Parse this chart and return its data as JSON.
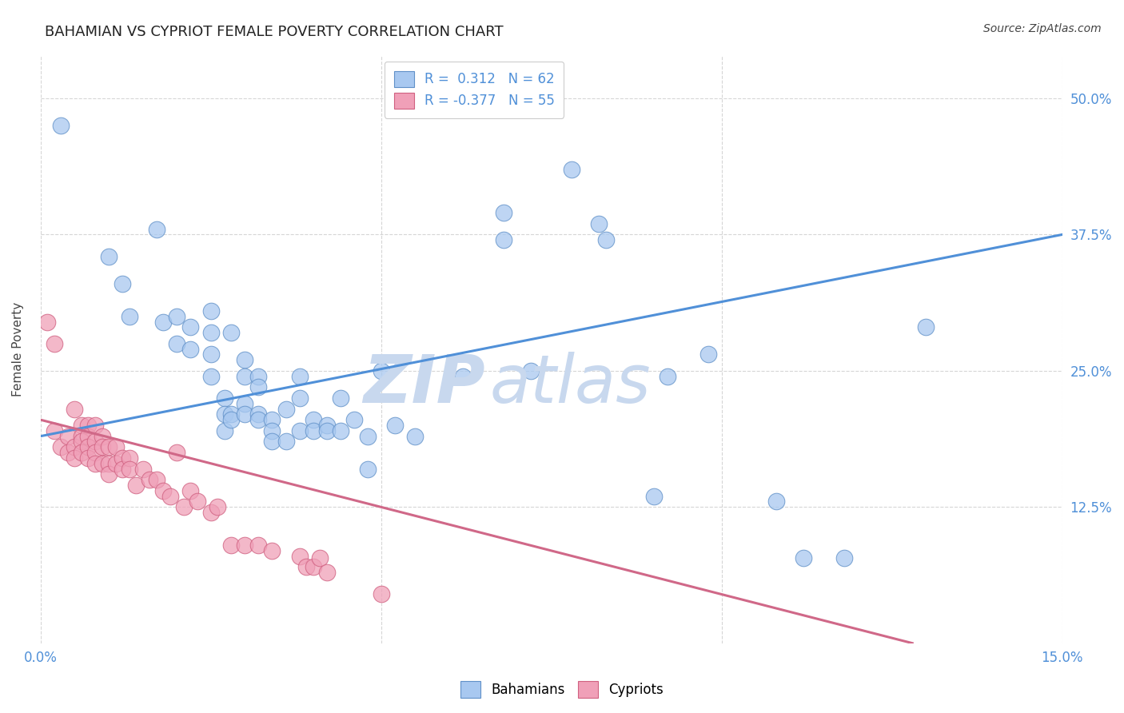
{
  "title": "BAHAMIAN VS CYPRIOT FEMALE POVERTY CORRELATION CHART",
  "source": "Source: ZipAtlas.com",
  "ylabel": "Female Poverty",
  "yticks": [
    "12.5%",
    "25.0%",
    "37.5%",
    "50.0%"
  ],
  "ytick_vals": [
    0.125,
    0.25,
    0.375,
    0.5
  ],
  "legend_blue_label": "R =  0.312   N = 62",
  "legend_pink_label": "R = -0.377   N = 55",
  "bahamians_label": "Bahamians",
  "cypriots_label": "Cypriots",
  "blue_color": "#A8C8F0",
  "pink_color": "#F0A0B8",
  "blue_edge_color": "#6090C8",
  "pink_edge_color": "#D06080",
  "blue_line_color": "#5090D8",
  "pink_line_color": "#D06888",
  "watermark_zip_color": "#C8D8EE",
  "watermark_atlas_color": "#C8D8EE",
  "background_color": "#FFFFFF",
  "xlim": [
    0.0,
    0.15
  ],
  "ylim": [
    0.0,
    0.54
  ],
  "blue_points": [
    [
      0.003,
      0.475
    ],
    [
      0.01,
      0.355
    ],
    [
      0.012,
      0.33
    ],
    [
      0.013,
      0.3
    ],
    [
      0.017,
      0.38
    ],
    [
      0.018,
      0.295
    ],
    [
      0.02,
      0.275
    ],
    [
      0.02,
      0.3
    ],
    [
      0.022,
      0.29
    ],
    [
      0.022,
      0.27
    ],
    [
      0.025,
      0.305
    ],
    [
      0.025,
      0.285
    ],
    [
      0.025,
      0.265
    ],
    [
      0.025,
      0.245
    ],
    [
      0.027,
      0.225
    ],
    [
      0.027,
      0.21
    ],
    [
      0.027,
      0.195
    ],
    [
      0.028,
      0.285
    ],
    [
      0.028,
      0.21
    ],
    [
      0.028,
      0.205
    ],
    [
      0.03,
      0.26
    ],
    [
      0.03,
      0.245
    ],
    [
      0.03,
      0.22
    ],
    [
      0.03,
      0.21
    ],
    [
      0.032,
      0.245
    ],
    [
      0.032,
      0.235
    ],
    [
      0.032,
      0.21
    ],
    [
      0.032,
      0.205
    ],
    [
      0.034,
      0.205
    ],
    [
      0.034,
      0.195
    ],
    [
      0.034,
      0.185
    ],
    [
      0.036,
      0.215
    ],
    [
      0.036,
      0.185
    ],
    [
      0.038,
      0.245
    ],
    [
      0.038,
      0.225
    ],
    [
      0.038,
      0.195
    ],
    [
      0.04,
      0.205
    ],
    [
      0.04,
      0.195
    ],
    [
      0.042,
      0.2
    ],
    [
      0.042,
      0.195
    ],
    [
      0.044,
      0.225
    ],
    [
      0.044,
      0.195
    ],
    [
      0.046,
      0.205
    ],
    [
      0.048,
      0.19
    ],
    [
      0.048,
      0.16
    ],
    [
      0.05,
      0.25
    ],
    [
      0.052,
      0.2
    ],
    [
      0.055,
      0.19
    ],
    [
      0.062,
      0.245
    ],
    [
      0.068,
      0.395
    ],
    [
      0.068,
      0.37
    ],
    [
      0.072,
      0.25
    ],
    [
      0.078,
      0.435
    ],
    [
      0.082,
      0.385
    ],
    [
      0.083,
      0.37
    ],
    [
      0.09,
      0.135
    ],
    [
      0.092,
      0.245
    ],
    [
      0.098,
      0.265
    ],
    [
      0.108,
      0.13
    ],
    [
      0.112,
      0.078
    ],
    [
      0.118,
      0.078
    ],
    [
      0.13,
      0.29
    ]
  ],
  "pink_points": [
    [
      0.001,
      0.295
    ],
    [
      0.002,
      0.275
    ],
    [
      0.002,
      0.195
    ],
    [
      0.003,
      0.18
    ],
    [
      0.004,
      0.19
    ],
    [
      0.004,
      0.175
    ],
    [
      0.005,
      0.215
    ],
    [
      0.005,
      0.18
    ],
    [
      0.005,
      0.17
    ],
    [
      0.006,
      0.2
    ],
    [
      0.006,
      0.19
    ],
    [
      0.006,
      0.185
    ],
    [
      0.006,
      0.175
    ],
    [
      0.007,
      0.2
    ],
    [
      0.007,
      0.19
    ],
    [
      0.007,
      0.18
    ],
    [
      0.007,
      0.17
    ],
    [
      0.008,
      0.2
    ],
    [
      0.008,
      0.185
    ],
    [
      0.008,
      0.175
    ],
    [
      0.008,
      0.165
    ],
    [
      0.009,
      0.19
    ],
    [
      0.009,
      0.18
    ],
    [
      0.009,
      0.165
    ],
    [
      0.01,
      0.18
    ],
    [
      0.01,
      0.165
    ],
    [
      0.01,
      0.155
    ],
    [
      0.011,
      0.18
    ],
    [
      0.011,
      0.165
    ],
    [
      0.012,
      0.17
    ],
    [
      0.012,
      0.16
    ],
    [
      0.013,
      0.17
    ],
    [
      0.013,
      0.16
    ],
    [
      0.014,
      0.145
    ],
    [
      0.015,
      0.16
    ],
    [
      0.016,
      0.15
    ],
    [
      0.017,
      0.15
    ],
    [
      0.018,
      0.14
    ],
    [
      0.019,
      0.135
    ],
    [
      0.02,
      0.175
    ],
    [
      0.021,
      0.125
    ],
    [
      0.022,
      0.14
    ],
    [
      0.023,
      0.13
    ],
    [
      0.025,
      0.12
    ],
    [
      0.026,
      0.125
    ],
    [
      0.028,
      0.09
    ],
    [
      0.03,
      0.09
    ],
    [
      0.032,
      0.09
    ],
    [
      0.034,
      0.085
    ],
    [
      0.038,
      0.08
    ],
    [
      0.039,
      0.07
    ],
    [
      0.04,
      0.07
    ],
    [
      0.041,
      0.078
    ],
    [
      0.042,
      0.065
    ],
    [
      0.05,
      0.045
    ]
  ],
  "blue_line_x": [
    0.0,
    0.15
  ],
  "blue_line_y": [
    0.19,
    0.375
  ],
  "pink_line_x": [
    0.0,
    0.128
  ],
  "pink_line_y": [
    0.205,
    0.0
  ]
}
